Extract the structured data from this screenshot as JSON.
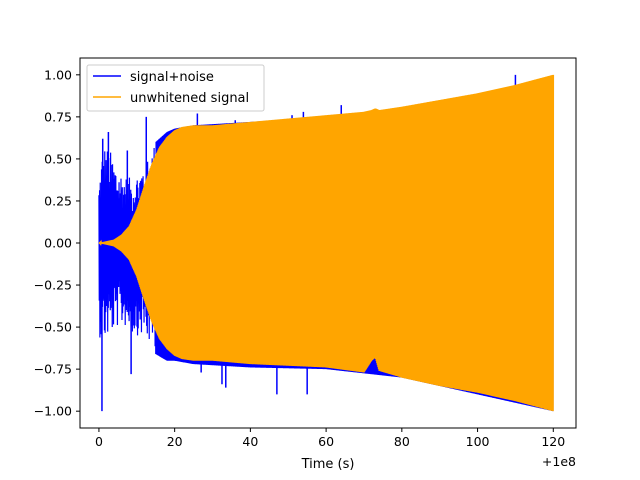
{
  "chart_data": {
    "type": "line",
    "title": "",
    "xlabel": "Time (s)",
    "ylabel": "",
    "x_offset_text": "+1e8",
    "xlim": [
      -5,
      126
    ],
    "ylim": [
      -1.1,
      1.1
    ],
    "x_ticks": [
      0,
      20,
      40,
      60,
      80,
      100,
      120
    ],
    "x_tick_labels": [
      "0",
      "20",
      "40",
      "60",
      "80",
      "100",
      "120"
    ],
    "y_ticks": [
      -1.0,
      -0.75,
      -0.5,
      -0.25,
      0.0,
      0.25,
      0.5,
      0.75,
      1.0
    ],
    "y_tick_labels": [
      "−1.00",
      "−0.75",
      "−0.50",
      "−0.25",
      "0.00",
      "0.25",
      "0.50",
      "0.75",
      "1.00"
    ],
    "grid": false,
    "legend_position": "top-left",
    "series": [
      {
        "name": "signal+noise",
        "color": "#0000ff",
        "style": "noisy chirp, dense oscillation",
        "envelope": {
          "x": [
            0,
            1,
            3,
            5,
            7,
            9,
            11,
            13,
            15,
            18,
            20,
            25,
            40,
            60,
            80,
            100,
            120
          ],
          "y_upper": [
            0.35,
            0.6,
            0.55,
            0.45,
            0.4,
            0.38,
            0.45,
            0.55,
            0.6,
            0.66,
            0.68,
            0.7,
            0.72,
            0.75,
            0.8,
            0.88,
            0.98
          ],
          "y_lower": [
            -0.55,
            -0.6,
            -0.55,
            -0.5,
            -0.5,
            -0.55,
            -0.55,
            -0.6,
            -0.66,
            -0.7,
            -0.7,
            -0.72,
            -0.74,
            -0.75,
            -0.8,
            -0.9,
            -1.0
          ]
        },
        "spikes": [
          {
            "x": 0.8,
            "y": -1.0
          },
          {
            "x": 1.0,
            "y": 0.62
          },
          {
            "x": 2.5,
            "y": 0.66
          },
          {
            "x": 7.5,
            "y": 0.55
          },
          {
            "x": 8.5,
            "y": -0.78
          },
          {
            "x": 12.5,
            "y": 0.75
          },
          {
            "x": 26,
            "y": 0.77
          },
          {
            "x": 27,
            "y": -0.77
          },
          {
            "x": 32.5,
            "y": -0.84
          },
          {
            "x": 33.5,
            "y": -0.86
          },
          {
            "x": 36,
            "y": 0.73
          },
          {
            "x": 47,
            "y": -0.9
          },
          {
            "x": 51,
            "y": 0.76
          },
          {
            "x": 54,
            "y": 0.78
          },
          {
            "x": 55,
            "y": -0.9
          },
          {
            "x": 64,
            "y": 0.82
          },
          {
            "x": 110,
            "y": 1.0
          }
        ]
      },
      {
        "name": "unwhitened signal",
        "color": "#ffa500",
        "style": "chirp, filled dense oscillation",
        "envelope": {
          "x": [
            0,
            2,
            4,
            6,
            8,
            10,
            12,
            14,
            16,
            18,
            20,
            22,
            25,
            30,
            40,
            60,
            70,
            72,
            73,
            74,
            80,
            90,
            100,
            110,
            120
          ],
          "y_upper": [
            0.0,
            0.01,
            0.02,
            0.05,
            0.1,
            0.2,
            0.34,
            0.47,
            0.57,
            0.63,
            0.67,
            0.69,
            0.7,
            0.7,
            0.72,
            0.76,
            0.78,
            0.79,
            0.8,
            0.79,
            0.81,
            0.85,
            0.89,
            0.94,
            1.0
          ],
          "y_lower": [
            0.0,
            -0.01,
            -0.02,
            -0.05,
            -0.1,
            -0.2,
            -0.34,
            -0.47,
            -0.57,
            -0.63,
            -0.67,
            -0.69,
            -0.7,
            -0.7,
            -0.72,
            -0.74,
            -0.77,
            -0.7,
            -0.68,
            -0.76,
            -0.8,
            -0.85,
            -0.89,
            -0.94,
            -1.0
          ]
        }
      }
    ]
  }
}
